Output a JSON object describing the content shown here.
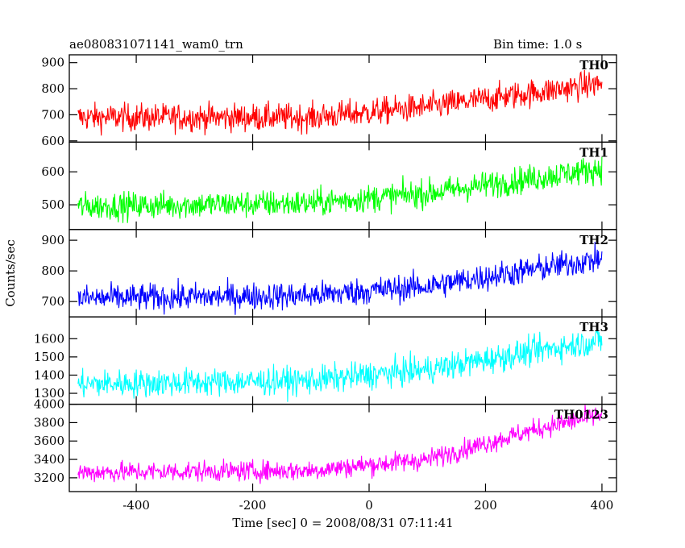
{
  "header": {
    "title": "ae080831071141_wam0_trn",
    "bin_time": "Bin time: 1.0 s"
  },
  "chart_data": {
    "type": "line",
    "ylabel": "Counts/sec",
    "xlabel": "Time [sec] 0 = 2008/08/31 07:11:41",
    "xlim": [
      -515,
      425
    ],
    "x_ticks": [
      -400,
      -200,
      0,
      200,
      400
    ],
    "x_start": -500,
    "x_end": 400,
    "x_step": 1,
    "panels": [
      {
        "name": "TH0",
        "color": "#ff0000",
        "ylim": [
          595,
          930
        ],
        "yticks": [
          600,
          700,
          800,
          900
        ],
        "trend_points": [
          [
            -500,
            690
          ],
          [
            -100,
            690
          ],
          [
            100,
            730
          ],
          [
            300,
            790
          ],
          [
            400,
            820
          ]
        ],
        "noise": 38
      },
      {
        "name": "TH1",
        "color": "#00ff00",
        "ylim": [
          425,
          690
        ],
        "yticks": [
          500,
          600
        ],
        "trend_points": [
          [
            -500,
            495
          ],
          [
            -100,
            505
          ],
          [
            100,
            535
          ],
          [
            300,
            585
          ],
          [
            400,
            610
          ]
        ],
        "noise": 30
      },
      {
        "name": "TH2",
        "color": "#0000ff",
        "ylim": [
          650,
          935
        ],
        "yticks": [
          700,
          800,
          900
        ],
        "trend_points": [
          [
            -500,
            710
          ],
          [
            -100,
            720
          ],
          [
            100,
            750
          ],
          [
            300,
            810
          ],
          [
            400,
            840
          ]
        ],
        "noise": 32
      },
      {
        "name": "TH3",
        "color": "#00ffff",
        "ylim": [
          1240,
          1720
        ],
        "yticks": [
          1300,
          1400,
          1500,
          1600
        ],
        "trend_points": [
          [
            -500,
            1350
          ],
          [
            -100,
            1370
          ],
          [
            100,
            1430
          ],
          [
            300,
            1540
          ],
          [
            400,
            1590
          ]
        ],
        "noise": 55
      },
      {
        "name": "TH0123",
        "color": "#ff00ff",
        "ylim": [
          3050,
          4000
        ],
        "yticks": [
          3200,
          3400,
          3600,
          3800,
          4000
        ],
        "trend_points": [
          [
            -500,
            3260
          ],
          [
            -100,
            3280
          ],
          [
            100,
            3400
          ],
          [
            300,
            3750
          ],
          [
            400,
            3880
          ]
        ],
        "noise": 80
      }
    ]
  }
}
